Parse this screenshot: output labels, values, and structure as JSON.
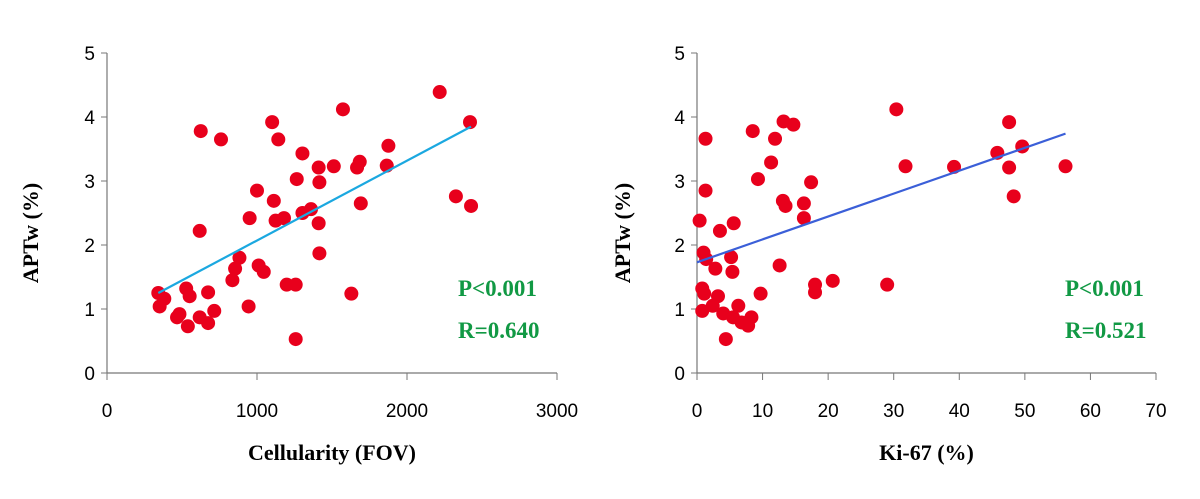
{
  "chart_data": [
    {
      "type": "scatter",
      "xlabel": "Cellularity (FOV)",
      "ylabel": "APTw (%)",
      "xlim": [
        0,
        3000
      ],
      "ylim": [
        0,
        5
      ],
      "xticks": [
        "0",
        "1000",
        "2000",
        "3000"
      ],
      "yticks": [
        "0",
        "1",
        "2",
        "3",
        "4",
        "5"
      ],
      "grid": false,
      "point_color": "#e8001c",
      "trend_color": "#1ba8e0",
      "trendline": {
        "x": [
          342,
          2427
        ],
        "y": [
          1.25,
          3.85
        ]
      },
      "annotations": [
        "P<0.001",
        "R=0.640"
      ],
      "annotation_color": "#119944",
      "points": [
        [
          2218,
          4.39
        ],
        [
          1573,
          4.12
        ],
        [
          2420,
          3.92
        ],
        [
          625,
          3.78
        ],
        [
          1101,
          3.92
        ],
        [
          760,
          3.65
        ],
        [
          1142,
          3.65
        ],
        [
          1876,
          3.55
        ],
        [
          1303,
          3.43
        ],
        [
          1685,
          3.3
        ],
        [
          1667,
          3.21
        ],
        [
          1411,
          3.21
        ],
        [
          1512,
          3.23
        ],
        [
          1865,
          3.24
        ],
        [
          1265,
          3.03
        ],
        [
          1416,
          2.98
        ],
        [
          1000,
          2.85
        ],
        [
          1112,
          2.69
        ],
        [
          2326,
          2.76
        ],
        [
          2427,
          2.61
        ],
        [
          1692,
          2.65
        ],
        [
          951,
          2.42
        ],
        [
          1303,
          2.5
        ],
        [
          1360,
          2.56
        ],
        [
          1180,
          2.42
        ],
        [
          1124,
          2.38
        ],
        [
          1411,
          2.34
        ],
        [
          618,
          2.22
        ],
        [
          1416,
          1.87
        ],
        [
          883,
          1.8
        ],
        [
          854,
          1.63
        ],
        [
          1011,
          1.68
        ],
        [
          1045,
          1.58
        ],
        [
          836,
          1.45
        ],
        [
          1198,
          1.38
        ],
        [
          1258,
          1.38
        ],
        [
          1629,
          1.24
        ],
        [
          342,
          1.25
        ],
        [
          382,
          1.16
        ],
        [
          351,
          1.04
        ],
        [
          528,
          1.32
        ],
        [
          551,
          1.2
        ],
        [
          674,
          1.26
        ],
        [
          944,
          1.04
        ],
        [
          715,
          0.97
        ],
        [
          483,
          0.92
        ],
        [
          467,
          0.87
        ],
        [
          618,
          0.87
        ],
        [
          674,
          0.78
        ],
        [
          539,
          0.73
        ],
        [
          1258,
          0.53
        ]
      ]
    },
    {
      "type": "scatter",
      "xlabel": "Ki-67 (%)",
      "ylabel": "APTw (%)",
      "xlim": [
        0,
        70
      ],
      "ylim": [
        0,
        5
      ],
      "xticks": [
        "0",
        "10",
        "20",
        "30",
        "40",
        "50",
        "60",
        "70"
      ],
      "yticks": [
        "0",
        "1",
        "2",
        "3",
        "4",
        "5"
      ],
      "grid": false,
      "point_color": "#e8001c",
      "trend_color": "#3b5fd8",
      "trendline": {
        "x": [
          0,
          56.2
        ],
        "y": [
          1.73,
          3.74
        ]
      },
      "annotations": [
        "P<0.001",
        "R=0.521"
      ],
      "annotation_color": "#119944",
      "points": [
        [
          30.4,
          4.12
        ],
        [
          47.6,
          3.92
        ],
        [
          13.2,
          3.93
        ],
        [
          14.7,
          3.88
        ],
        [
          8.5,
          3.78
        ],
        [
          1.3,
          3.66
        ],
        [
          11.9,
          3.66
        ],
        [
          49.6,
          3.54
        ],
        [
          45.8,
          3.44
        ],
        [
          11.3,
          3.29
        ],
        [
          31.8,
          3.23
        ],
        [
          39.2,
          3.22
        ],
        [
          47.6,
          3.21
        ],
        [
          56.2,
          3.23
        ],
        [
          9.3,
          3.03
        ],
        [
          17.4,
          2.98
        ],
        [
          1.3,
          2.85
        ],
        [
          48.3,
          2.76
        ],
        [
          13.1,
          2.69
        ],
        [
          13.5,
          2.61
        ],
        [
          16.3,
          2.65
        ],
        [
          16.3,
          2.42
        ],
        [
          0.4,
          2.38
        ],
        [
          5.6,
          2.34
        ],
        [
          3.5,
          2.22
        ],
        [
          1.0,
          1.88
        ],
        [
          1.4,
          1.78
        ],
        [
          5.2,
          1.81
        ],
        [
          2.8,
          1.63
        ],
        [
          5.4,
          1.58
        ],
        [
          12.6,
          1.68
        ],
        [
          20.7,
          1.44
        ],
        [
          18.0,
          1.38
        ],
        [
          29.0,
          1.38
        ],
        [
          18.0,
          1.26
        ],
        [
          0.8,
          1.32
        ],
        [
          1.1,
          1.24
        ],
        [
          9.7,
          1.24
        ],
        [
          3.2,
          1.2
        ],
        [
          2.4,
          1.05
        ],
        [
          6.3,
          1.05
        ],
        [
          0.8,
          0.97
        ],
        [
          4.0,
          0.93
        ],
        [
          5.5,
          0.87
        ],
        [
          8.3,
          0.87
        ],
        [
          6.8,
          0.79
        ],
        [
          7.8,
          0.74
        ],
        [
          4.4,
          0.53
        ]
      ]
    }
  ]
}
